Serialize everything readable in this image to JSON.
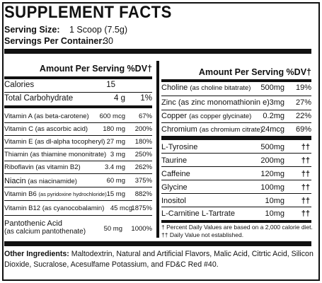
{
  "title": "SUPPLEMENT FACTS",
  "serving": {
    "size_label": "Serving Size:",
    "size_value": "1 Scoop (7.5g)",
    "per_container_label": "Servings Per Container:",
    "per_container_value": "30"
  },
  "left": {
    "header": "Amount Per Serving %DV†",
    "rows": [
      {
        "name": "Calories",
        "amount": "15",
        "dv": ""
      },
      {
        "name": "Total Carbohydrate",
        "amount": "4 g",
        "dv": "1%"
      },
      {
        "name": "Vitamin A",
        "note": "(as beta-carotene)",
        "amount": "600 mcg",
        "dv": "67%"
      },
      {
        "name": "Vitamin C",
        "note": "(as ascorbic acid)",
        "amount": "180 mg",
        "dv": "200%"
      },
      {
        "name": "Vitamin E",
        "note": "(as dl-alpha tocopheryl)",
        "amount": "27 mg",
        "dv": "180%"
      },
      {
        "name": "Thiamin",
        "note": "(as thiamine mononitrate)",
        "amount": "3 mg",
        "dv": "250%"
      },
      {
        "name": "Riboflavin",
        "note": "(as vitamin B2)",
        "amount": "3.4 mg",
        "dv": "262%"
      },
      {
        "name": "Niacin",
        "note": "(as niacinamide)",
        "amount": "60 mg",
        "dv": "375%"
      },
      {
        "name": "Vitamin B6",
        "note": "(as pyridoxine hydrochloride)",
        "amount": "15 mg",
        "dv": "882%"
      },
      {
        "name": "Vitamin B12",
        "note": "(as cyanocobalamin)",
        "amount": "45 mcg",
        "dv": "1875%"
      },
      {
        "name": "Pantothenic Acid",
        "note": "(as calcium pantothenate)",
        "amount": "50 mg",
        "dv": "1000%"
      }
    ]
  },
  "right": {
    "header": "Amount Per Serving %DV†",
    "rows": [
      {
        "name": "Choline",
        "note": "(as choline bitatrate)",
        "amount": "500mg",
        "dv": "19%"
      },
      {
        "name": "Zinc",
        "note": "(as zinc monomathionin e)",
        "amount": "3mg",
        "dv": "27%"
      },
      {
        "name": "Copper",
        "note": "(as copper glycinate)",
        "amount": "0.2mg",
        "dv": "22%"
      },
      {
        "name": "Chromium",
        "note": "(as chromium citrate)",
        "amount": "24mcg",
        "dv": "69%"
      },
      {
        "name": "L-Tyrosine",
        "amount": "500mg",
        "dv": "††"
      },
      {
        "name": "Taurine",
        "amount": "200mg",
        "dv": "††"
      },
      {
        "name": "Caffeine",
        "amount": "120mg",
        "dv": "††"
      },
      {
        "name": "Glycine",
        "amount": "100mg",
        "dv": "††"
      },
      {
        "name": "Inositol",
        "amount": "10mg",
        "dv": "††"
      },
      {
        "name": "L-Carnitine L-Tartrate",
        "amount": "10mg",
        "dv": "††"
      }
    ],
    "footnote1": "† Percent Daily Values are based on a 2,000 calorie diet.",
    "footnote2": "†† Daily Value not established."
  },
  "other": {
    "label": "Other Ingredients:",
    "text": "Maltodextrin, Natural and Artificial Flavors, Malic Acid, Citrtic Acid, Silicon Dioxide, Sucralose, Acesulfame Potassium, and FD&C Red #40."
  }
}
